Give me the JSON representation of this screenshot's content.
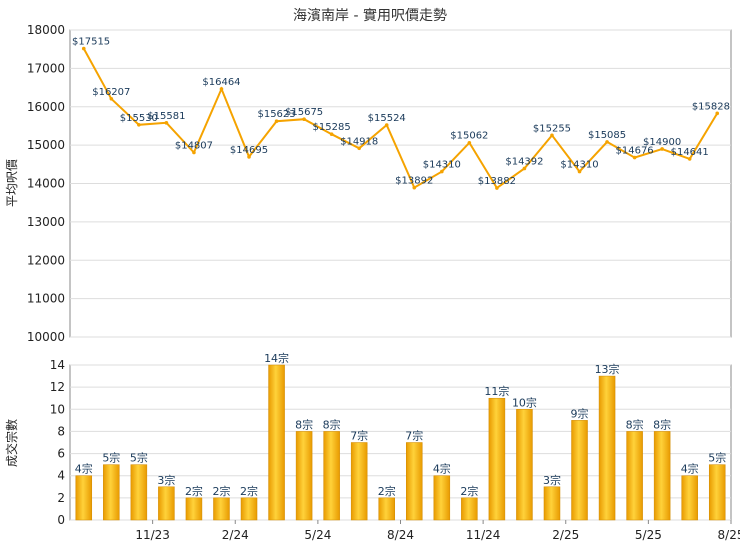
{
  "chart_data": [
    {
      "type": "line",
      "title": "海濱南岸 - 實用呎價走勢",
      "ylabel": "平均呎價",
      "ylim": [
        10000,
        18000
      ],
      "yticks": [
        10000,
        11000,
        12000,
        13000,
        14000,
        15000,
        16000,
        17000,
        18000
      ],
      "grid": true,
      "color": "#f5a300",
      "value_labels": [
        "$17515",
        "$16207",
        "$15530",
        "$15581",
        "$14807",
        "$16464",
        "$14695",
        "$15623",
        "$15675",
        "$15285",
        "$14918",
        "$15524",
        "$13892",
        "$14310",
        "$15062",
        "$13882",
        "$14392",
        "$15255",
        "$14310",
        "$15085",
        "$14676",
        "$14900",
        "$14641",
        "$15828"
      ],
      "values": [
        17515,
        16207,
        15530,
        15581,
        14807,
        16464,
        14695,
        15623,
        15675,
        15285,
        14918,
        15524,
        13892,
        14310,
        15062,
        13882,
        14392,
        15255,
        14310,
        15085,
        14676,
        14900,
        14641,
        15828
      ]
    },
    {
      "type": "bar",
      "ylabel": "成交宗數",
      "ylim": [
        0,
        14
      ],
      "yticks": [
        0,
        2,
        4,
        6,
        8,
        10,
        12,
        14
      ],
      "grid": true,
      "color": "#f5a300",
      "x_tick_labels": [
        "11/23",
        "2/24",
        "5/24",
        "8/24",
        "11/24",
        "2/25",
        "5/25",
        "8/25"
      ],
      "value_labels": [
        "4宗",
        "5宗",
        "5宗",
        "3宗",
        "2宗",
        "2宗",
        "2宗",
        "14宗",
        "8宗",
        "8宗",
        "7宗",
        "2宗",
        "7宗",
        "4宗",
        "2宗",
        "11宗",
        "10宗",
        "3宗",
        "9宗",
        "13宗",
        "8宗",
        "8宗",
        "4宗",
        "5宗"
      ],
      "values": [
        4,
        5,
        5,
        3,
        2,
        2,
        2,
        14,
        8,
        8,
        7,
        2,
        7,
        4,
        2,
        11,
        10,
        3,
        9,
        13,
        8,
        8,
        4,
        5
      ]
    }
  ]
}
